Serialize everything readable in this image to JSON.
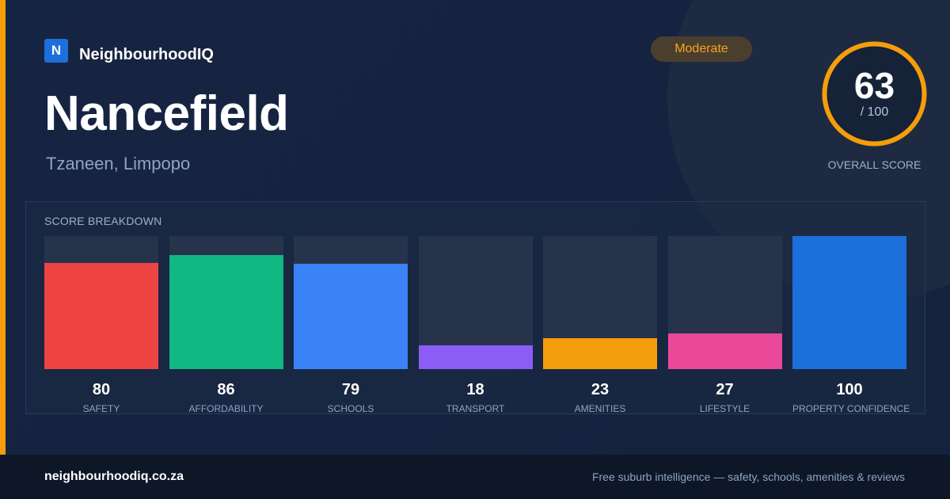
{
  "brand": {
    "logo_letter": "N",
    "name": "NeighbourhoodIQ"
  },
  "suburb": {
    "name": "Nancefield",
    "location": "Tzaneen, Limpopo"
  },
  "rating_badge": {
    "label": "Moderate",
    "color": "#f5a623"
  },
  "overall": {
    "score": "63",
    "max_label": "/ 100",
    "label": "OVERALL SCORE",
    "fraction": 0.63,
    "ring_color": "#f59e0b"
  },
  "breakdown": {
    "heading": "SCORE BREAKDOWN",
    "items": [
      {
        "label": "SAFETY",
        "value": 80,
        "color": "#ef4444"
      },
      {
        "label": "AFFORDABILITY",
        "value": 86,
        "color": "#10b981"
      },
      {
        "label": "SCHOOLS",
        "value": 79,
        "color": "#3b82f6"
      },
      {
        "label": "TRANSPORT",
        "value": 18,
        "color": "#8b5cf6"
      },
      {
        "label": "AMENITIES",
        "value": 23,
        "color": "#f59e0b"
      },
      {
        "label": "LIFESTYLE",
        "value": 27,
        "color": "#ec4899"
      },
      {
        "label": "PROPERTY CONFIDENCE",
        "value": 100,
        "color": "#1d6fdc"
      }
    ]
  },
  "chart_data": {
    "type": "bar",
    "title": "SCORE BREAKDOWN",
    "categories": [
      "SAFETY",
      "AFFORDABILITY",
      "SCHOOLS",
      "TRANSPORT",
      "AMENITIES",
      "LIFESTYLE",
      "PROPERTY CONFIDENCE"
    ],
    "values": [
      80,
      86,
      79,
      18,
      23,
      27,
      100
    ],
    "ylim": [
      0,
      100
    ],
    "grid": false
  },
  "footer": {
    "url": "neighbourhoodiq.co.za",
    "tagline": "Free suburb intelligence — safety, schools, amenities & reviews"
  }
}
